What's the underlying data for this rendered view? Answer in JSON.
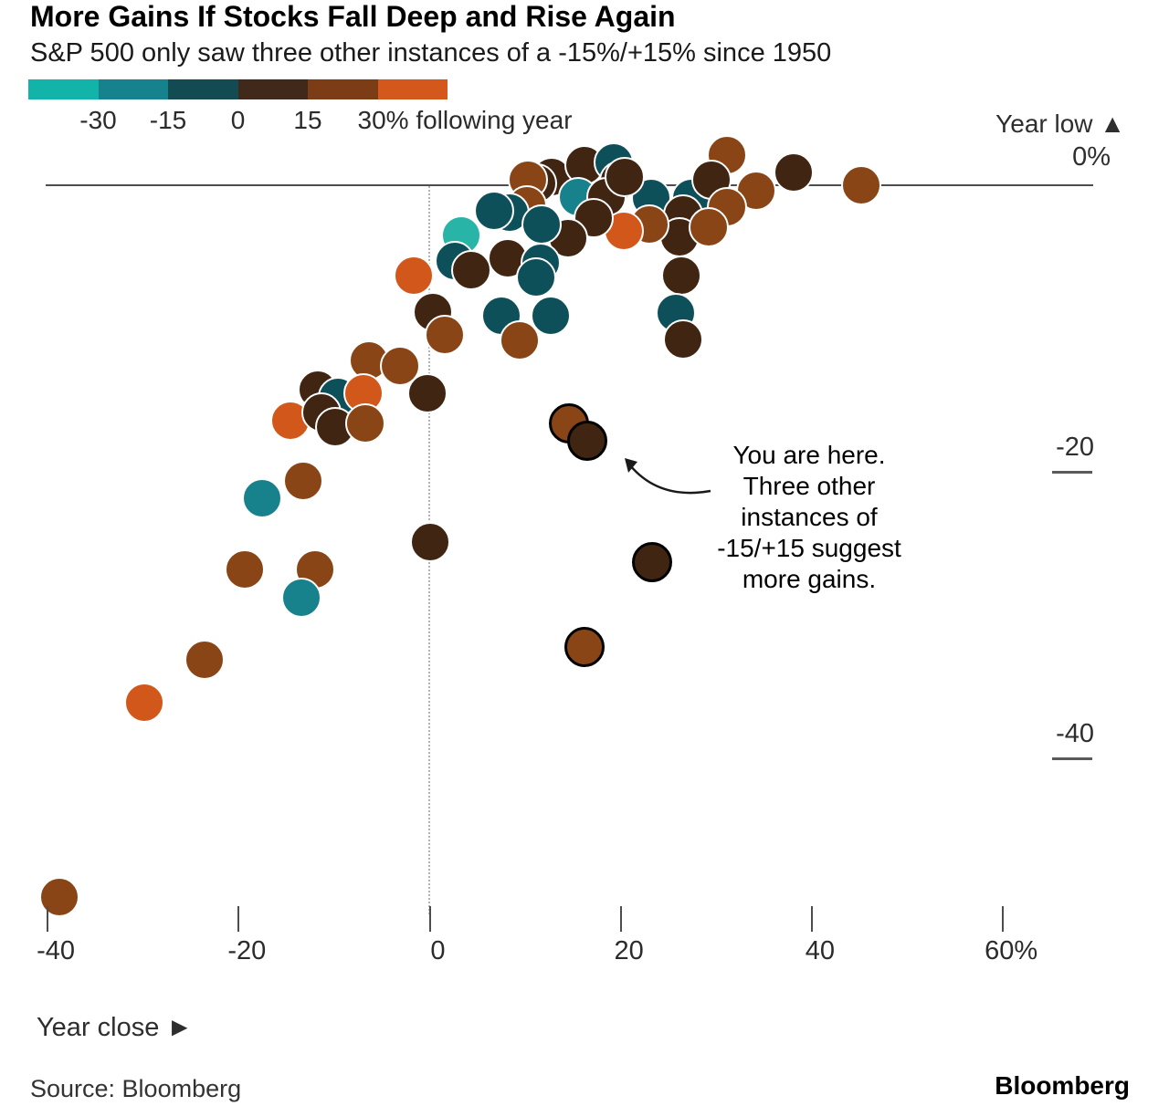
{
  "header": {
    "title": "More Gains If Stocks Fall Deep and Rise Again",
    "subtitle": "S&P 500 only saw three other instances of a -15%/+15% since 1950"
  },
  "legend": {
    "segments": [
      "#12b3a8",
      "#16828d",
      "#134b52",
      "#40281a",
      "#7c3d16",
      "#d4571b"
    ],
    "labels": [
      "-30",
      "-15",
      "0",
      "15",
      "30% following year"
    ]
  },
  "axes": {
    "y_title": "Year low ▲",
    "y_labels": [
      "0%",
      "-20",
      "-40"
    ],
    "x_labels": [
      "-40",
      "-20",
      "0",
      "20",
      "40",
      "60%"
    ],
    "x_title": "Year close ►"
  },
  "annotation": {
    "lines": [
      "You are here.",
      "Three other",
      "instances of",
      "-15/+15 suggest",
      "more gains."
    ]
  },
  "footer": {
    "source": "Source: Bloomberg",
    "logo": "Bloomberg"
  },
  "chart_data": {
    "type": "scatter",
    "title": "More Gains If Stocks Fall Deep and Rise Again",
    "xlabel": "Year close (%)",
    "ylabel": "Year low (%)",
    "x_ticks": [
      -40,
      -20,
      0,
      20,
      40,
      60
    ],
    "y_ticks": [
      0,
      -20,
      -40
    ],
    "color_scale": {
      "meaning": "following year return (%)",
      "bins": [
        "<-30",
        "-30 to -15",
        "-15 to 0",
        "0 to 15",
        "15 to 30",
        ">30"
      ],
      "palette": {
        "lt": "#28b5a8",
        "mt": "#17818c",
        "dt": "#0e505a",
        "db": "#3f2512",
        "mb": "#8a4517",
        "or": "#d2571b"
      }
    },
    "point_format": [
      "year_close_pct",
      "year_low_pct",
      "following_year_bin",
      "highlighted"
    ],
    "points": [
      [
        12.9,
        0.6,
        "db",
        0
      ],
      [
        16.3,
        1.4,
        "db",
        0
      ],
      [
        19.4,
        1.6,
        "dt",
        0
      ],
      [
        19.9,
        0.3,
        "db",
        0
      ],
      [
        11.3,
        0.1,
        "db",
        0
      ],
      [
        10.4,
        0.4,
        "mb",
        0
      ],
      [
        15.6,
        -0.8,
        "mt",
        0
      ],
      [
        18.6,
        -0.8,
        "db",
        0
      ],
      [
        23.3,
        -0.9,
        "dt",
        0
      ],
      [
        27.5,
        -0.9,
        "dt",
        0
      ],
      [
        20.5,
        0.6,
        "db",
        0
      ],
      [
        31.2,
        2.1,
        "mb",
        0
      ],
      [
        29.6,
        0.4,
        "db",
        0
      ],
      [
        34.3,
        -0.4,
        "mb",
        0
      ],
      [
        38.2,
        0.9,
        "db",
        0
      ],
      [
        45.3,
        0.0,
        "mb",
        0
      ],
      [
        31.2,
        -1.5,
        "mb",
        0
      ],
      [
        26.6,
        -2.0,
        "db",
        0
      ],
      [
        26.2,
        -3.6,
        "db",
        0
      ],
      [
        29.3,
        -2.9,
        "mb",
        0
      ],
      [
        26.4,
        -6.3,
        "db",
        0
      ],
      [
        25.9,
        -8.9,
        "dt",
        0
      ],
      [
        26.6,
        -10.7,
        "db",
        0
      ],
      [
        23.1,
        -2.7,
        "mb",
        0
      ],
      [
        20.4,
        -3.2,
        "or",
        0
      ],
      [
        17.3,
        -2.3,
        "db",
        0
      ],
      [
        14.6,
        -3.7,
        "db",
        0
      ],
      [
        10.3,
        -1.4,
        "mb",
        0
      ],
      [
        8.5,
        -1.9,
        "dt",
        0
      ],
      [
        11.8,
        -2.7,
        "dt",
        0
      ],
      [
        8.3,
        -5.1,
        "db",
        0
      ],
      [
        11.7,
        -5.4,
        "dt",
        0
      ],
      [
        11.2,
        -6.4,
        "dt",
        0
      ],
      [
        6.8,
        -1.8,
        "dt",
        0
      ],
      [
        3.4,
        -3.5,
        "lt",
        0
      ],
      [
        2.7,
        -5.3,
        "dt",
        0
      ],
      [
        4.4,
        -5.9,
        "db",
        0
      ],
      [
        -1.6,
        -6.3,
        "or",
        0
      ],
      [
        0.4,
        -8.8,
        "db",
        0
      ],
      [
        1.7,
        -10.4,
        "mb",
        0
      ],
      [
        7.6,
        -9.1,
        "dt",
        0
      ],
      [
        12.8,
        -9.1,
        "dt",
        0
      ],
      [
        9.5,
        -10.8,
        "mb",
        0
      ],
      [
        -6.3,
        -12.2,
        "mb",
        0
      ],
      [
        -3.0,
        -12.6,
        "mb",
        0
      ],
      [
        -11.6,
        -14.2,
        "db",
        0
      ],
      [
        -9.5,
        -14.7,
        "dt",
        0
      ],
      [
        -6.8,
        -14.5,
        "or",
        0
      ],
      [
        -0.1,
        -14.5,
        "db",
        0
      ],
      [
        0.1,
        -24.8,
        "db",
        0
      ],
      [
        -14.5,
        -16.4,
        "or",
        0
      ],
      [
        -11.2,
        -15.8,
        "db",
        0
      ],
      [
        -9.8,
        -16.8,
        "db",
        0
      ],
      [
        -6.6,
        -16.6,
        "mb",
        0
      ],
      [
        -17.4,
        -21.8,
        "mt",
        0
      ],
      [
        -13.1,
        -20.6,
        "mb",
        0
      ],
      [
        -19.3,
        -26.7,
        "mb",
        0
      ],
      [
        -11.9,
        -26.7,
        "mb",
        0
      ],
      [
        -13.3,
        -28.7,
        "mt",
        0
      ],
      [
        -23.5,
        -33.0,
        "mb",
        0
      ],
      [
        -29.8,
        -36.0,
        "or",
        0
      ],
      [
        -38.7,
        -49.5,
        "mb",
        0
      ],
      [
        14.7,
        -16.6,
        "mb",
        1
      ],
      [
        16.6,
        -17.8,
        "db",
        1
      ],
      [
        23.4,
        -26.2,
        "db",
        1
      ],
      [
        16.3,
        -32.1,
        "mb",
        1
      ]
    ]
  }
}
